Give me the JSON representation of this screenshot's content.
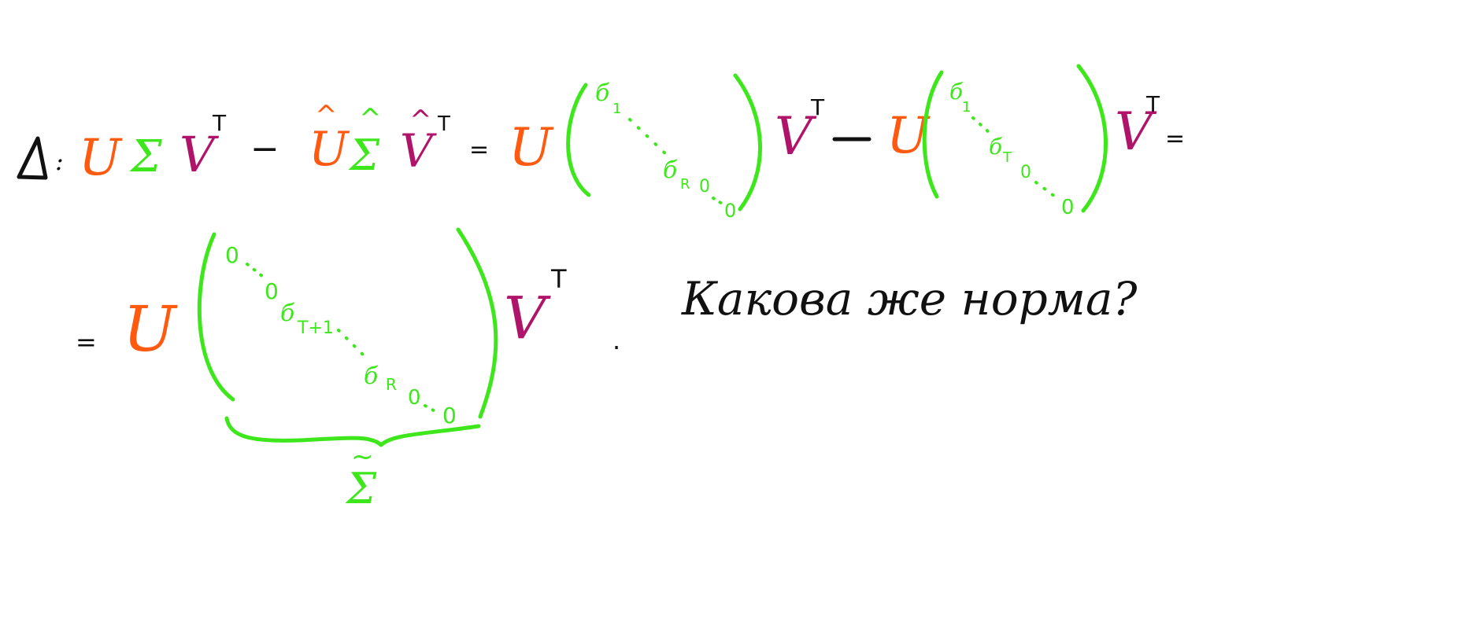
{
  "colors": {
    "black": "#111111",
    "orange": "#ff5a10",
    "green": "#3ee61c",
    "magenta": "#b0146a",
    "background": "#ffffff"
  },
  "line1": {
    "delta": "Δ",
    "colon": ":",
    "eq": "=",
    "U": "U",
    "Sigma": "Σ",
    "V": "V",
    "T": "T",
    "minus": "−",
    "hat": "^",
    "matrix1": {
      "s1": "б",
      "s1_sub": "1",
      "sr": "б",
      "sr_sub": "R",
      "zero": "0",
      "dots": "· · ·",
      "zero_end": "0"
    },
    "matrix2": {
      "s1": "б",
      "s1_sub": "1",
      "st": "б",
      "st_sub": "T",
      "zero": "0",
      "dots": "· ·",
      "zero_end": "0"
    }
  },
  "line2": {
    "eq": "=",
    "U": "U",
    "V": "V",
    "T": "T",
    "period": ".",
    "matrix3": {
      "zero_a": "0",
      "dots_a": "· ·",
      "zero_b": "0",
      "st1": "б",
      "st1_sub": "T+1",
      "dots_b": "· · ·",
      "sr": "б",
      "sr_sub": "R",
      "zero_c": "0",
      "dots_c": "· ·",
      "zero_end": "0"
    },
    "brace_label": "Σ",
    "tilde": "~",
    "question": "Какова же норма?"
  }
}
